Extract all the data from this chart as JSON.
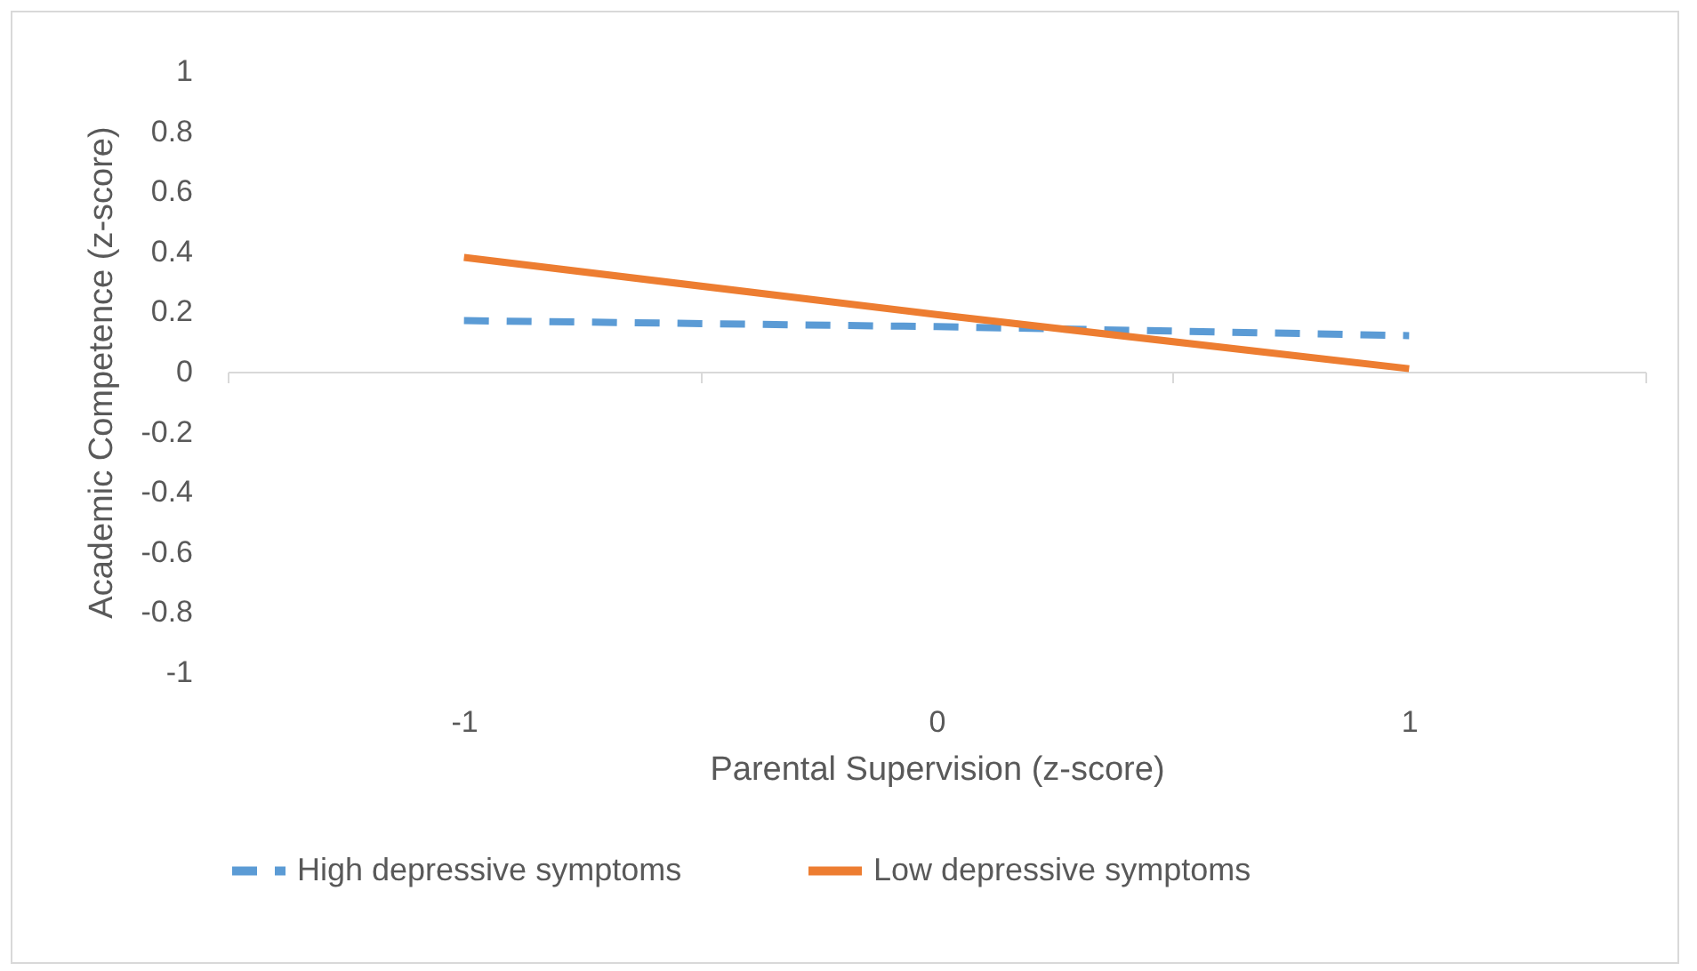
{
  "chart_data": {
    "type": "line",
    "xlabel": "Parental Supervision (z-score)",
    "ylabel": "Academic Competence (z-score)",
    "categories": [
      "-1",
      "0",
      "1"
    ],
    "series": [
      {
        "name": "High depressive symptoms",
        "color": "#5b9bd5",
        "line_style": "dashed",
        "values": [
          0.17,
          0.15,
          0.12
        ]
      },
      {
        "name": "Low depressive symptoms",
        "color": "#ed7d31",
        "line_style": "solid",
        "values": [
          0.38,
          0.19,
          0.01
        ]
      }
    ],
    "ylim": [
      -1,
      1
    ],
    "yticks": [
      -1,
      -0.8,
      -0.6,
      -0.4,
      -0.2,
      0,
      0.2,
      0.4,
      0.6,
      0.8,
      1
    ],
    "legend": "bottom",
    "marker": "none"
  }
}
